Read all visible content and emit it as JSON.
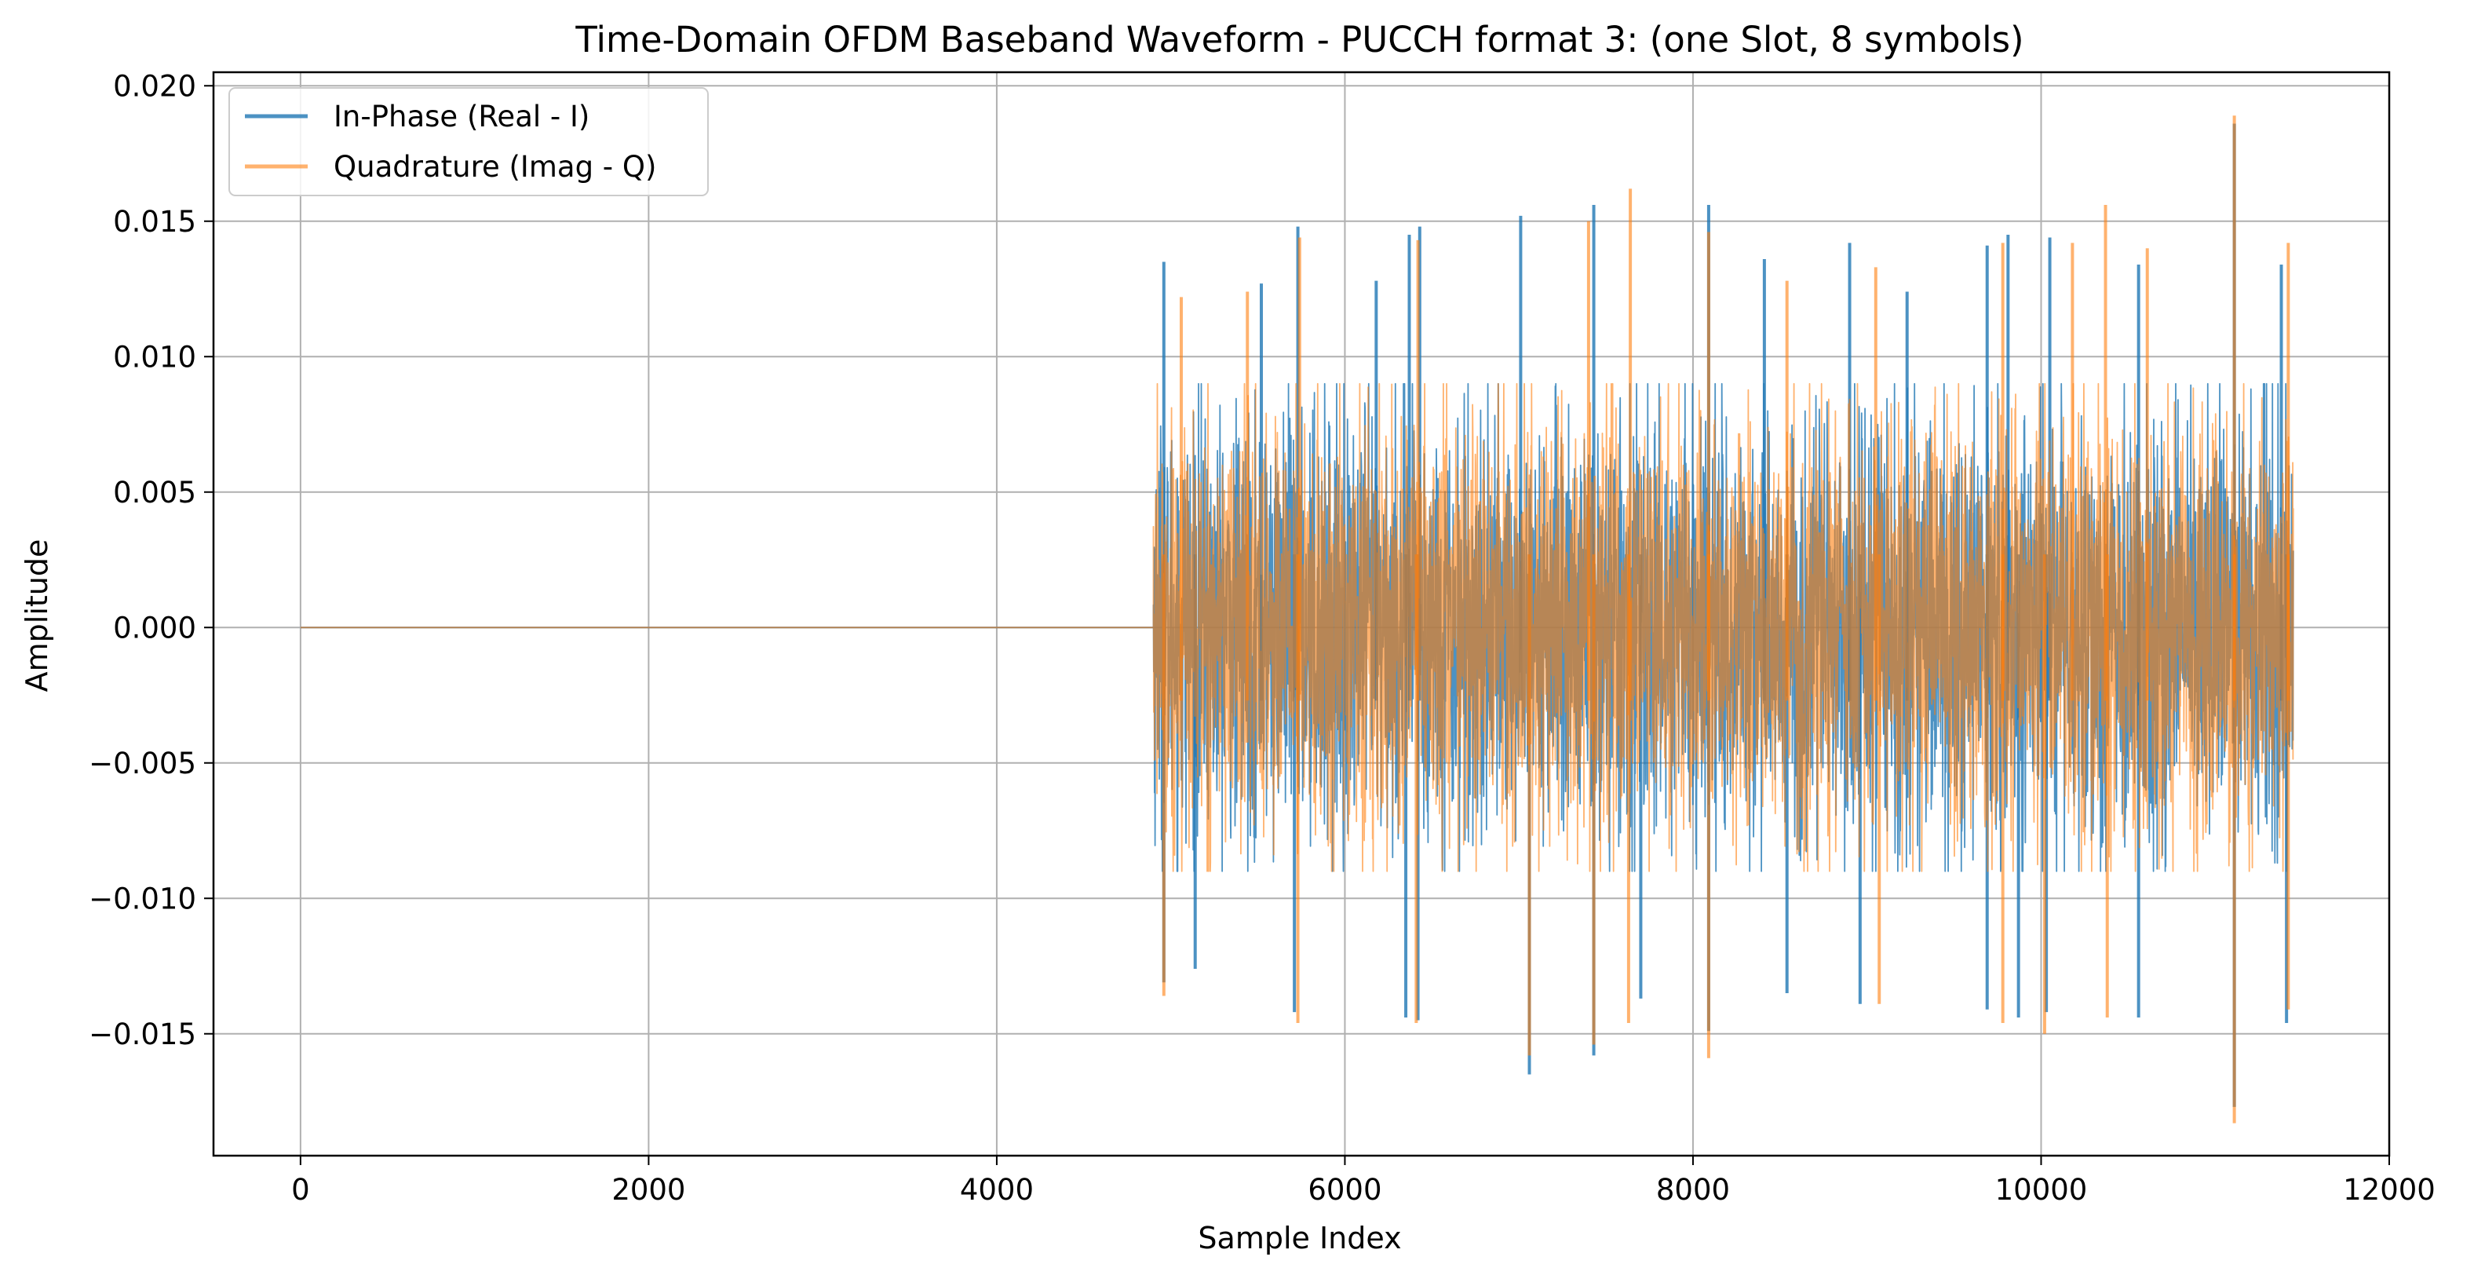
{
  "chart_data": {
    "type": "line",
    "title": "Time-Domain OFDM Baseband Waveform - PUCCH format 3: (one Slot, 8 symbols)",
    "xlabel": "Sample Index",
    "ylabel": "Amplitude",
    "xlim": [
      -500,
      12000
    ],
    "ylim": [
      -0.0195,
      0.0205
    ],
    "xticks": [
      0,
      2000,
      4000,
      6000,
      8000,
      10000,
      12000
    ],
    "xtick_labels": [
      "0",
      "2000",
      "4000",
      "6000",
      "8000",
      "10000",
      "12000"
    ],
    "yticks": [
      -0.015,
      -0.01,
      -0.005,
      0.0,
      0.005,
      0.01,
      0.015,
      0.02
    ],
    "ytick_labels": [
      "−0.015",
      "−0.010",
      "−0.005",
      "0.000",
      "0.005",
      "0.010",
      "0.015",
      "0.020"
    ],
    "grid": true,
    "legend_position": "upper-left",
    "signal": {
      "zero_segment": [
        0,
        4900
      ],
      "active_segment": [
        4900,
        11450
      ],
      "typical_envelope": 0.009
    },
    "series": [
      {
        "name": "In-Phase (Real - I)",
        "color": "#1f77b4",
        "opacity": 0.8,
        "upper_peaks": [
          [
            4960,
            0.0135
          ],
          [
            5520,
            0.0127
          ],
          [
            5730,
            0.0148
          ],
          [
            6180,
            0.0128
          ],
          [
            6370,
            0.0145
          ],
          [
            6430,
            0.0148
          ],
          [
            7010,
            0.0152
          ],
          [
            7430,
            0.0156
          ],
          [
            8090,
            0.0156
          ],
          [
            8410,
            0.0136
          ],
          [
            8900,
            0.0142
          ],
          [
            9230,
            0.0124
          ],
          [
            9690,
            0.0141
          ],
          [
            9810,
            0.0145
          ],
          [
            10050,
            0.0144
          ],
          [
            10560,
            0.0134
          ],
          [
            11110,
            0.0186
          ],
          [
            11380,
            0.0134
          ]
        ],
        "lower_peaks": [
          [
            4960,
            -0.0131
          ],
          [
            5140,
            -0.0126
          ],
          [
            5710,
            -0.0142
          ],
          [
            6350,
            -0.0144
          ],
          [
            6420,
            -0.0145
          ],
          [
            7060,
            -0.0165
          ],
          [
            7430,
            -0.0158
          ],
          [
            7700,
            -0.0137
          ],
          [
            8090,
            -0.0149
          ],
          [
            8540,
            -0.0135
          ],
          [
            8960,
            -0.0139
          ],
          [
            9690,
            -0.0141
          ],
          [
            9870,
            -0.0144
          ],
          [
            10030,
            -0.0142
          ],
          [
            10560,
            -0.0144
          ],
          [
            11110,
            -0.0177
          ],
          [
            11410,
            -0.0146
          ]
        ]
      },
      {
        "name": "Quadrature (Imag - Q)",
        "color": "#ff7f0e",
        "opacity": 0.6,
        "upper_peaks": [
          [
            5060,
            0.0122
          ],
          [
            5440,
            0.0124
          ],
          [
            5740,
            0.0144
          ],
          [
            6420,
            0.0143
          ],
          [
            7400,
            0.015
          ],
          [
            7640,
            0.0162
          ],
          [
            8090,
            0.0146
          ],
          [
            8540,
            0.0128
          ],
          [
            9050,
            0.0133
          ],
          [
            9780,
            0.0142
          ],
          [
            10180,
            0.0142
          ],
          [
            10370,
            0.0156
          ],
          [
            10610,
            0.014
          ],
          [
            11110,
            0.0189
          ],
          [
            11420,
            0.0142
          ]
        ],
        "lower_peaks": [
          [
            4960,
            -0.0136
          ],
          [
            5730,
            -0.0146
          ],
          [
            6410,
            -0.0146
          ],
          [
            7060,
            -0.0158
          ],
          [
            7430,
            -0.0154
          ],
          [
            7630,
            -0.0146
          ],
          [
            8090,
            -0.0159
          ],
          [
            9070,
            -0.0139
          ],
          [
            9780,
            -0.0146
          ],
          [
            10020,
            -0.015
          ],
          [
            10380,
            -0.0144
          ],
          [
            11110,
            -0.0183
          ],
          [
            11420,
            -0.0141
          ]
        ]
      }
    ]
  }
}
